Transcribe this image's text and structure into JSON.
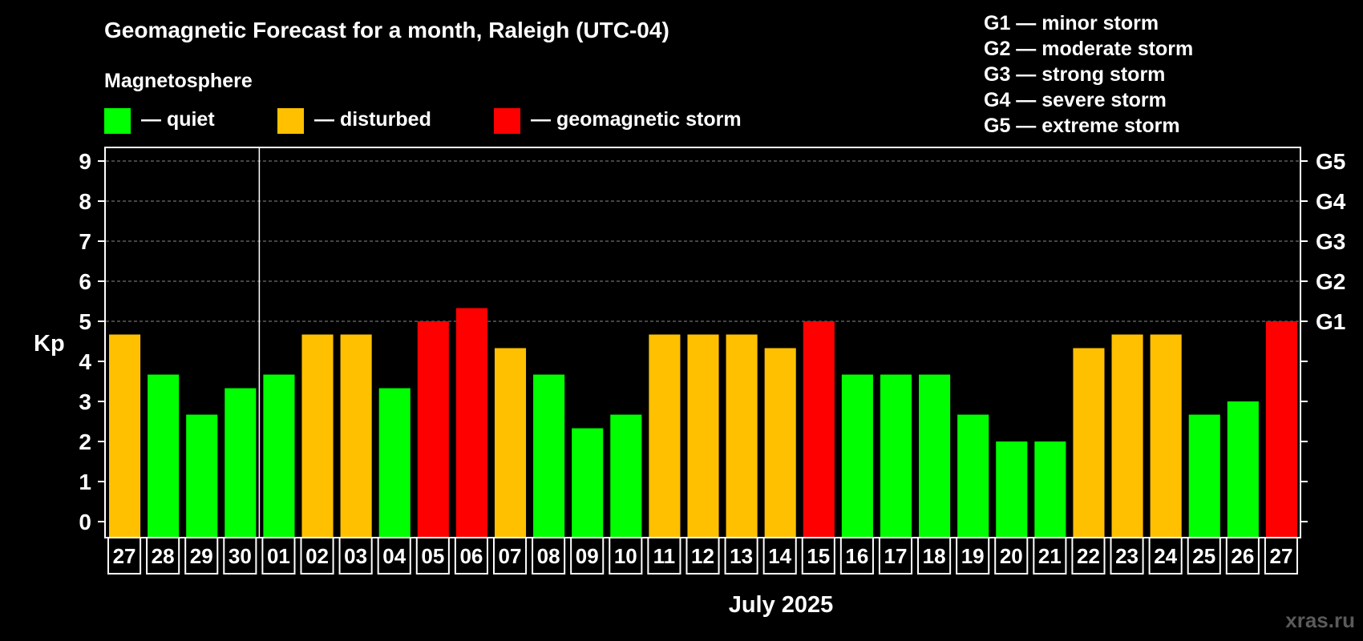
{
  "chart_data": {
    "type": "bar",
    "title": "Geomagnetic Forecast for a month, Raleigh (UTC-04)",
    "legend": {
      "heading": "Magnetosphere",
      "entries": [
        {
          "label": "— quiet",
          "color": "#00FF00"
        },
        {
          "label": "— disturbed",
          "color": "#FFC000"
        },
        {
          "label": "— geomagnetic storm",
          "color": "#FF0000"
        }
      ]
    },
    "storm_scale": [
      "G1 — minor storm",
      "G2 — moderate storm",
      "G3 — strong storm",
      "G4 — severe storm",
      "G5 — extreme storm"
    ],
    "ylabel": "Kp",
    "ylim": [
      0,
      9
    ],
    "yticks": [
      "0",
      "1",
      "2",
      "3",
      "4",
      "5",
      "6",
      "7",
      "8",
      "9"
    ],
    "right_ticks": [
      {
        "value": 5,
        "label": "G1"
      },
      {
        "value": 6,
        "label": "G2"
      },
      {
        "value": 7,
        "label": "G3"
      },
      {
        "value": 8,
        "label": "G4"
      },
      {
        "value": 9,
        "label": "G5"
      }
    ],
    "xlabel": "July 2025",
    "month_boundary_after_index": 3,
    "categories": [
      "27",
      "28",
      "29",
      "30",
      "01",
      "02",
      "03",
      "04",
      "05",
      "06",
      "07",
      "08",
      "09",
      "10",
      "11",
      "12",
      "13",
      "14",
      "15",
      "16",
      "17",
      "18",
      "19",
      "20",
      "21",
      "22",
      "23",
      "24",
      "25",
      "26",
      "27"
    ],
    "values": [
      4.67,
      3.67,
      2.67,
      3.33,
      3.67,
      4.67,
      4.67,
      3.33,
      5.0,
      5.33,
      4.33,
      3.67,
      2.33,
      2.67,
      4.67,
      4.67,
      4.67,
      4.33,
      5.0,
      3.67,
      3.67,
      3.67,
      2.67,
      2.0,
      2.0,
      4.33,
      4.67,
      4.67,
      2.67,
      3.0,
      5.0
    ],
    "colors": {
      "quiet": "#00FF00",
      "disturbed": "#FFC000",
      "storm": "#FF0000"
    },
    "grid": true
  },
  "watermark": "xras.ru"
}
